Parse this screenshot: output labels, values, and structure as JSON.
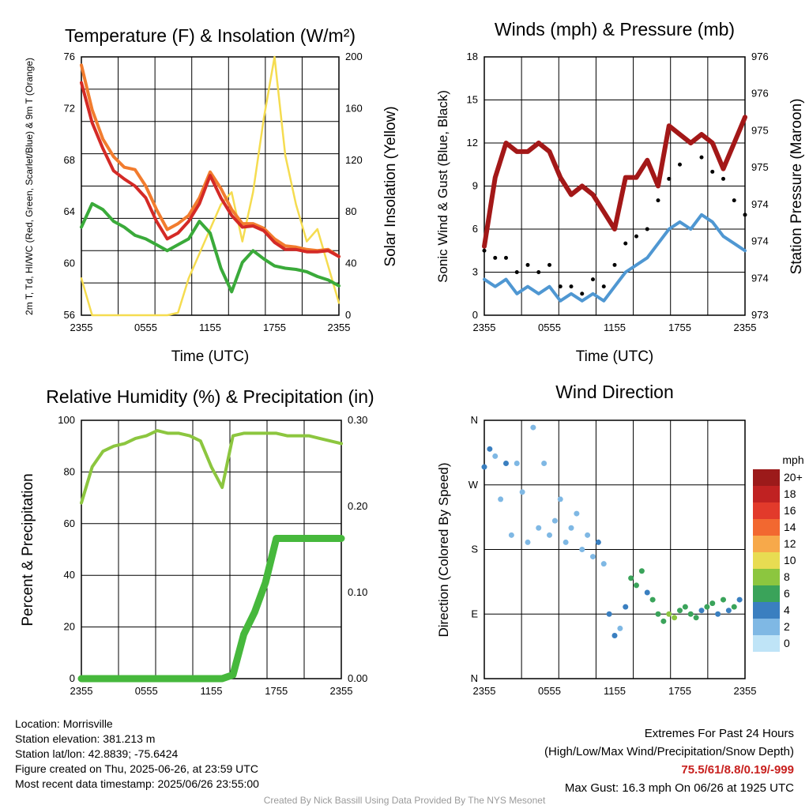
{
  "panels": {
    "temperature": {
      "title": "Temperature (F) & Insolation (W/m²)",
      "ylabel_left": "2m T, Td, HI/WC (Red, Green, Scarlet/Blue) & 9m T (Orange)",
      "ylabel_right": "Solar Insolation (Yellow)",
      "xlabel": "Time (UTC)",
      "x_ticks": [
        "2355",
        "0555",
        "1155",
        "1755",
        "2355"
      ],
      "y_ticks_left": [
        "56",
        "60",
        "64",
        "68",
        "72",
        "76"
      ],
      "y_ticks_right": [
        "0",
        "40",
        "80",
        "120",
        "160",
        "200"
      ]
    },
    "winds": {
      "title": "Winds (mph) & Pressure (mb)",
      "ylabel_left": "Sonic Wind & Gust (Blue, Black)",
      "ylabel_right": "Station Pressure (Maroon)",
      "xlabel": "Time (UTC)",
      "x_ticks": [
        "2355",
        "0555",
        "1155",
        "1755",
        "2355"
      ],
      "y_ticks_left": [
        "0",
        "3",
        "6",
        "9",
        "12",
        "15",
        "18"
      ],
      "y_ticks_right": [
        "973",
        "974",
        "974",
        "974",
        "975",
        "975",
        "976",
        "976"
      ]
    },
    "humidity": {
      "title": "Relative Humidity (%) & Precipitation (in)",
      "ylabel_left": "Percent & Precipitation",
      "x_ticks": [
        "2355",
        "0555",
        "1155",
        "1755",
        "2355"
      ],
      "y_ticks_left": [
        "0",
        "20",
        "40",
        "60",
        "80",
        "100"
      ],
      "y_ticks_right": [
        "0.00",
        "0.10",
        "0.20",
        "0.30"
      ]
    },
    "direction": {
      "title": "Wind Direction",
      "ylabel_left": "Direction (Colored By Speed)",
      "x_ticks": [
        "2355",
        "0555",
        "1155",
        "1755",
        "2355"
      ],
      "y_ticks_left": [
        "N",
        "E",
        "S",
        "W",
        "N"
      ],
      "legend_title": "mph",
      "legend_labels": [
        "20+",
        "18",
        "16",
        "14",
        "12",
        "10",
        "8",
        "6",
        "4",
        "2",
        "0"
      ]
    }
  },
  "colors": {
    "temp_2m": "#d42a26",
    "temp_9m": "#f27c2e",
    "dewpoint": "#3aaa3a",
    "insolation": "#f5dc50",
    "wind": "#4f97d2",
    "gust": "#000000",
    "pressure": "#a31818",
    "rh": "#8cc63f",
    "precip": "#46b83c",
    "legend": [
      "#9c1a1a",
      "#c02222",
      "#e23a2b",
      "#f26830",
      "#f7a94a",
      "#e8dc52",
      "#8cc63f",
      "#3aa35a",
      "#3a7fc0",
      "#7fb8e4",
      "#bfe4f7"
    ]
  },
  "info": {
    "location": "Location: Morrisville",
    "elevation": "Station elevation: 381.213 m",
    "latlon": "Station lat/lon: 42.8839; -75.6424",
    "created": "Figure created on Thu, 2025-06-26, at 23:59 UTC",
    "recent": "Most recent data timestamp: 2025/06/26 23:55:00"
  },
  "extremes": {
    "title": "Extremes For Past 24 Hours",
    "subtitle": "(High/Low/Max Wind/Precipitation/Snow Depth)",
    "values": "75.5/61/8.8/0.19/-999",
    "max_gust": "Max Gust: 16.3 mph On 06/26 at 1925 UTC"
  },
  "credit": "Created By Nick Bassill Using Data Provided By The NYS Mesonet",
  "chart_data": [
    {
      "type": "line",
      "x_hours": [
        0,
        1,
        2,
        3,
        4,
        5,
        6,
        7,
        8,
        9,
        10,
        11,
        12,
        13,
        14,
        15,
        16,
        17,
        18,
        19,
        20,
        21,
        22,
        23,
        24
      ],
      "series": [
        {
          "values": [
            75.8,
            72.4,
            70.2,
            68.3,
            67.6,
            67.0,
            66.0,
            64.0,
            62.5,
            63.0,
            64.0,
            65.5,
            67.9,
            66.0,
            64.5,
            63.5,
            63.6,
            63.2,
            62.2,
            61.6,
            61.6,
            61.4,
            61.4,
            61.5,
            61.0
          ]
        },
        {
          "values": [
            77.3,
            73.5,
            71.0,
            69.5,
            68.6,
            68.4,
            67.0,
            65.0,
            63.3,
            63.8,
            64.5,
            66.0,
            68.2,
            66.8,
            65.0,
            63.8,
            63.8,
            63.4,
            62.5,
            61.9,
            61.8,
            61.6,
            61.5,
            61.6,
            61.0
          ]
        },
        {
          "values": [
            63.5,
            65.5,
            65.0,
            64.0,
            63.5,
            62.8,
            62.5,
            62.0,
            61.5,
            62.0,
            62.5,
            64.0,
            63.0,
            60.0,
            58.0,
            60.5,
            61.5,
            60.8,
            60.2,
            60.0,
            59.9,
            59.7,
            59.3,
            59.0,
            58.5
          ]
        },
        {
          "values": [
            30,
            0,
            0,
            0,
            0,
            0,
            0,
            0,
            0,
            2,
            30,
            50,
            70,
            90,
            100,
            60,
            100,
            160,
            210,
            130,
            90,
            60,
            70,
            40,
            10
          ]
        }
      ],
      "ylim": [
        56,
        78
      ],
      "ylim_right": [
        0,
        210
      ]
    },
    {
      "type": "line",
      "x_hours": [
        0,
        1,
        2,
        3,
        4,
        5,
        6,
        7,
        8,
        9,
        10,
        11,
        12,
        13,
        14,
        15,
        16,
        17,
        18,
        19,
        20,
        21,
        22,
        23,
        24
      ],
      "series": [
        {
          "values": [
            2.5,
            2.0,
            2.5,
            1.5,
            2.0,
            1.5,
            2.0,
            1.0,
            1.5,
            1.0,
            1.5,
            1.0,
            2.0,
            3.0,
            3.5,
            4.0,
            5.0,
            6.0,
            6.5,
            6.0,
            7.0,
            6.5,
            5.5,
            5.0,
            4.5
          ]
        },
        {
          "values": [
            4.5,
            4.0,
            4.0,
            3.0,
            3.5,
            3.0,
            3.5,
            2.0,
            2.0,
            1.5,
            2.5,
            2.0,
            3.5,
            5.0,
            5.5,
            6.0,
            8.0,
            9.5,
            10.5,
            12.0,
            11.0,
            10.0,
            9.5,
            8.0,
            7.0
          ]
        },
        {
          "values": [
            973.8,
            974.6,
            975.0,
            974.9,
            974.9,
            975.0,
            974.9,
            974.6,
            974.4,
            974.5,
            974.4,
            974.2,
            974.0,
            974.6,
            974.6,
            974.8,
            974.5,
            975.2,
            975.1,
            975.0,
            975.1,
            975.0,
            974.7,
            975.0,
            975.3
          ]
        }
      ],
      "ylim": [
        0,
        18
      ],
      "ylim_right": [
        973.0,
        976.0
      ]
    },
    {
      "type": "line",
      "x_hours": [
        0,
        1,
        2,
        3,
        4,
        5,
        6,
        7,
        8,
        9,
        10,
        11,
        12,
        13,
        14,
        15,
        16,
        17,
        18,
        19,
        20,
        21,
        22,
        23,
        24
      ],
      "series": [
        {
          "values": [
            68,
            82,
            88,
            90,
            91,
            93,
            94,
            96,
            95,
            95,
            94,
            92,
            82,
            74,
            94,
            95,
            95,
            95,
            95,
            94,
            94,
            94,
            93,
            92,
            91
          ]
        },
        {
          "values": [
            0,
            0,
            0,
            0,
            0,
            0,
            0,
            0,
            0,
            0,
            0,
            0,
            0,
            0,
            0.005,
            0.06,
            0.09,
            0.13,
            0.19,
            0.19,
            0.19,
            0.19,
            0.19,
            0.19,
            0.19
          ]
        }
      ],
      "ylim": [
        0,
        100
      ],
      "ylim_right": [
        0,
        0.35
      ]
    },
    {
      "type": "scatter",
      "x_hours": [
        0,
        0.5,
        1,
        1.5,
        2,
        2.5,
        3,
        3.5,
        4,
        4.5,
        5,
        5.5,
        6,
        6.5,
        7,
        7.5,
        8,
        8.5,
        9,
        9.5,
        10,
        10.5,
        11,
        11.5,
        12,
        12.5,
        13,
        13.5,
        14,
        14.5,
        15,
        15.5,
        16,
        16.5,
        17,
        17.5,
        18,
        18.5,
        19,
        19.5,
        20,
        20.5,
        21,
        21.5,
        22,
        22.5,
        23,
        23.5
      ],
      "direction_deg": [
        295,
        320,
        310,
        250,
        300,
        200,
        300,
        260,
        190,
        350,
        210,
        300,
        200,
        220,
        250,
        190,
        210,
        230,
        180,
        200,
        170,
        190,
        160,
        90,
        60,
        70,
        100,
        140,
        130,
        150,
        120,
        110,
        90,
        80,
        90,
        85,
        95,
        100,
        90,
        85,
        95,
        100,
        105,
        90,
        110,
        95,
        100,
        110
      ],
      "speed_mph": [
        3,
        3,
        2,
        1,
        3,
        1,
        2,
        1,
        1,
        2,
        1,
        2,
        1,
        1,
        2,
        1,
        1,
        1,
        1,
        2,
        1,
        3,
        2,
        3,
        3,
        2,
        4,
        5,
        5,
        6,
        4,
        5,
        6,
        6,
        7,
        7,
        6,
        5,
        6,
        5,
        4,
        5,
        5,
        4,
        5,
        4,
        5,
        4
      ],
      "ylim": [
        0,
        360
      ]
    }
  ]
}
